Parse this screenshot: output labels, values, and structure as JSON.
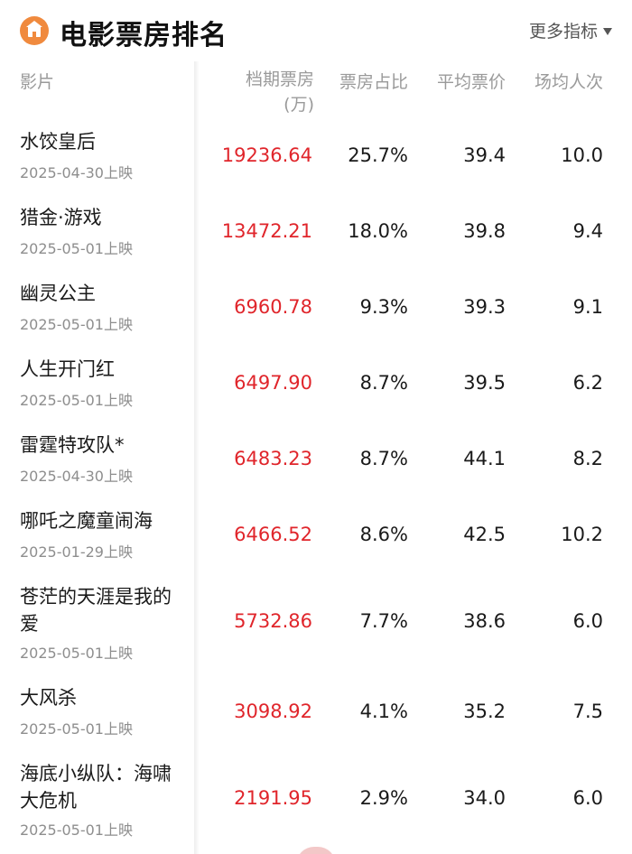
{
  "header": {
    "title": "电影票房排名",
    "more_label": "更多指标"
  },
  "columns": {
    "film": "影片",
    "box_office": "档期票房",
    "box_office_unit": "(万)",
    "share": "票房占比",
    "avg_price": "平均票价",
    "avg_attendance": "场均人次"
  },
  "rows": [
    {
      "name": "水饺皇后",
      "date": "2025-04-30上映",
      "box": "19236.64",
      "share": "25.7%",
      "price": "39.4",
      "avg": "10.0"
    },
    {
      "name": "猎金·游戏",
      "date": "2025-05-01上映",
      "box": "13472.21",
      "share": "18.0%",
      "price": "39.8",
      "avg": "9.4"
    },
    {
      "name": "幽灵公主",
      "date": "2025-05-01上映",
      "box": "6960.78",
      "share": "9.3%",
      "price": "39.3",
      "avg": "9.1"
    },
    {
      "name": "人生开门红",
      "date": "2025-05-01上映",
      "box": "6497.90",
      "share": "8.7%",
      "price": "39.5",
      "avg": "6.2"
    },
    {
      "name": "雷霆特攻队*",
      "date": "2025-04-30上映",
      "box": "6483.23",
      "share": "8.7%",
      "price": "44.1",
      "avg": "8.2"
    },
    {
      "name": "哪吒之魔童闹海",
      "date": "2025-01-29上映",
      "box": "6466.52",
      "share": "8.6%",
      "price": "42.5",
      "avg": "10.2"
    },
    {
      "name": "苍茫的天涯是我的爱",
      "date": "2025-05-01上映",
      "box": "5732.86",
      "share": "7.7%",
      "price": "38.6",
      "avg": "6.0"
    },
    {
      "name": "大风杀",
      "date": "2025-05-01上映",
      "box": "3098.92",
      "share": "4.1%",
      "price": "35.2",
      "avg": "7.5"
    },
    {
      "name": "海底小纵队：海啸大危机",
      "date": "2025-05-01上映",
      "box": "2191.95",
      "share": "2.9%",
      "price": "34.0",
      "avg": "6.0"
    }
  ],
  "colors": {
    "accent": "#e0252b",
    "logo": "#f08a3e"
  }
}
